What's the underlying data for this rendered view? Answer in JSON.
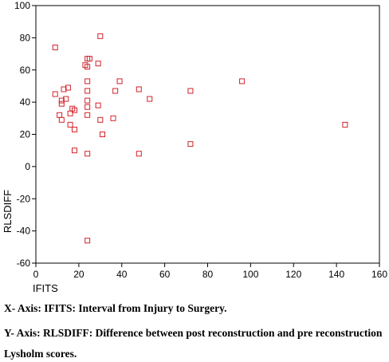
{
  "chart_data": {
    "type": "scatter",
    "xlabel": "IFITS",
    "ylabel": "RLSDIFF",
    "xlim": [
      0,
      160
    ],
    "ylim": [
      -60,
      100
    ],
    "xticks": [
      0,
      20,
      40,
      60,
      80,
      100,
      120,
      140,
      160
    ],
    "yticks": [
      -60,
      -40,
      -20,
      0,
      20,
      40,
      60,
      80,
      100
    ],
    "grid": false,
    "marker_color": "#d2232a",
    "marker": "open-square",
    "points": [
      {
        "x": 9,
        "y": 74
      },
      {
        "x": 9,
        "y": 45
      },
      {
        "x": 11,
        "y": 32
      },
      {
        "x": 12,
        "y": 41
      },
      {
        "x": 12,
        "y": 39
      },
      {
        "x": 12,
        "y": 29
      },
      {
        "x": 13,
        "y": 48
      },
      {
        "x": 14,
        "y": 42
      },
      {
        "x": 15,
        "y": 49
      },
      {
        "x": 16,
        "y": 33
      },
      {
        "x": 16,
        "y": 26
      },
      {
        "x": 17,
        "y": 36
      },
      {
        "x": 18,
        "y": 35
      },
      {
        "x": 18,
        "y": 23
      },
      {
        "x": 18,
        "y": 10
      },
      {
        "x": 23,
        "y": 63
      },
      {
        "x": 24,
        "y": 67
      },
      {
        "x": 24,
        "y": 62
      },
      {
        "x": 24,
        "y": 53
      },
      {
        "x": 24,
        "y": 47
      },
      {
        "x": 24,
        "y": 41
      },
      {
        "x": 24,
        "y": 37
      },
      {
        "x": 24,
        "y": 32
      },
      {
        "x": 24,
        "y": 8
      },
      {
        "x": 24,
        "y": -46
      },
      {
        "x": 25,
        "y": 67
      },
      {
        "x": 29,
        "y": 64
      },
      {
        "x": 29,
        "y": 38
      },
      {
        "x": 30,
        "y": 81
      },
      {
        "x": 30,
        "y": 29
      },
      {
        "x": 31,
        "y": 20
      },
      {
        "x": 36,
        "y": 30
      },
      {
        "x": 37,
        "y": 47
      },
      {
        "x": 39,
        "y": 53
      },
      {
        "x": 48,
        "y": 48
      },
      {
        "x": 48,
        "y": 8
      },
      {
        "x": 53,
        "y": 42
      },
      {
        "x": 72,
        "y": 47
      },
      {
        "x": 72,
        "y": 14
      },
      {
        "x": 96,
        "y": 53
      },
      {
        "x": 144,
        "y": 26
      }
    ]
  },
  "captions": {
    "x_axis": "X- Axis: IFITS: Interval from Injury to Surgery.",
    "y_axis": "Y- Axis: RLSDIFF: Difference between post reconstruction and pre reconstruction",
    "y_axis_cont": "Lysholm scores."
  }
}
